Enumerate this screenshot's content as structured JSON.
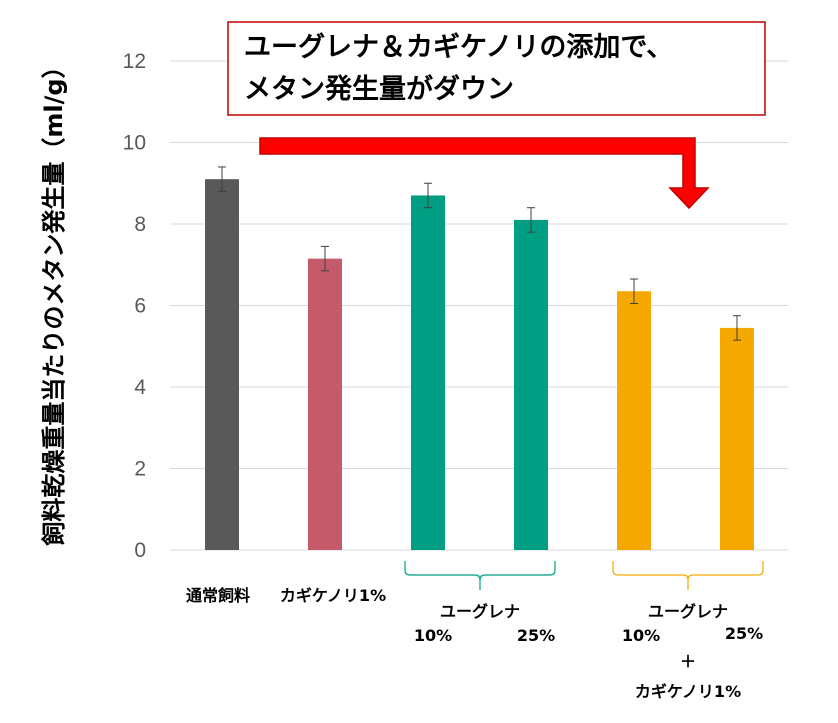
{
  "chart_data": {
    "type": "bar",
    "ylabel": "飼料乾燥重量当たりのメタン発生量（ml/g）",
    "ylim": [
      0,
      12
    ],
    "yticks": [
      0,
      2,
      4,
      6,
      8,
      10,
      12
    ],
    "grid": true,
    "categories": [
      "通常飼料",
      "カギケノリ1%",
      "10%",
      "25%",
      "10%",
      "25%"
    ],
    "values": [
      9.1,
      7.15,
      8.7,
      8.1,
      6.35,
      5.45
    ],
    "errors": [
      0.3,
      0.3,
      0.3,
      0.3,
      0.3,
      0.3
    ],
    "bar_colors": [
      "#595959",
      "#C55A6A",
      "#009E82",
      "#009E82",
      "#F5A800",
      "#F5A800"
    ],
    "groups": [
      {
        "label": "ユーグレナ",
        "color": "#009E82",
        "members": [
          2,
          3
        ]
      },
      {
        "label_lines": [
          "ユーグレナ",
          "＋",
          "カギケノリ1%"
        ],
        "color": "#F5A800",
        "members": [
          4,
          5
        ]
      }
    ],
    "annotation": {
      "line1": "ユーグレナ＆カギケノリの添加で、",
      "line2": "メタン発生量がダウン",
      "arrow_color": "#FF0000",
      "box_border_color": "#C00000"
    }
  }
}
